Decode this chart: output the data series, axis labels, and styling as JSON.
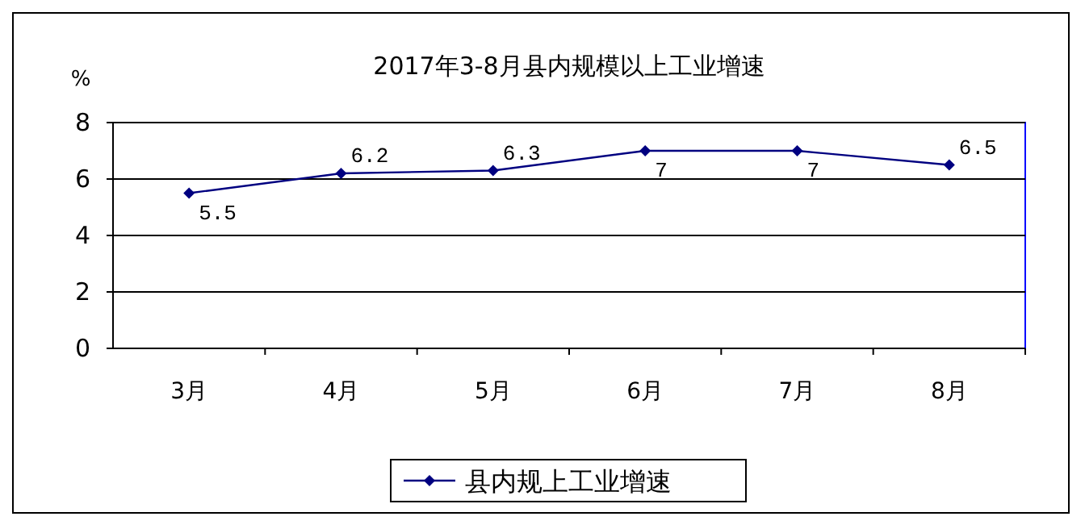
{
  "chart_data": {
    "type": "line",
    "title": "2017年3-8月县内规模以上工业增速",
    "ylabel": "%",
    "categories": [
      "3月",
      "4月",
      "5月",
      "6月",
      "7月",
      "8月"
    ],
    "series": [
      {
        "name": "县内规上工业增速",
        "color": "#000080",
        "values": [
          5.5,
          6.2,
          6.3,
          7,
          7,
          6.5
        ]
      }
    ],
    "ylim": [
      0,
      8
    ],
    "yticks": [
      0,
      2,
      4,
      6,
      8
    ],
    "grid": "y",
    "legend": "bottom",
    "marker": "diamond",
    "line_style": "solid",
    "data_labels": true
  }
}
